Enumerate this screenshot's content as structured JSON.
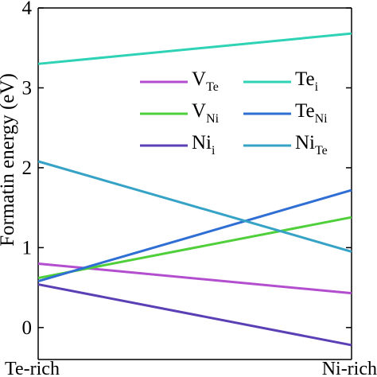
{
  "chart_data": {
    "type": "line",
    "categories": [
      "Te-rich",
      "Ni-rich"
    ],
    "ylabel": "Formatin energy (eV)",
    "ylim": [
      -0.4,
      4
    ],
    "yticks": [
      "0",
      "1",
      "2",
      "3",
      "4"
    ],
    "ytick_values": [
      0,
      1,
      2,
      3,
      4
    ],
    "legend_position": "upper-right",
    "series": [
      {
        "key": "v_te",
        "name_main": "V",
        "name_sub": "Te",
        "values": [
          0.8,
          0.43
        ],
        "color": "#b34fcf"
      },
      {
        "key": "te_i",
        "name_main": "Te",
        "name_sub": "i",
        "values": [
          3.3,
          3.68
        ],
        "color": "#2ed2b5"
      },
      {
        "key": "v_ni",
        "name_main": "V",
        "name_sub": "Ni",
        "values": [
          0.62,
          1.38
        ],
        "color": "#4fcf3a"
      },
      {
        "key": "te_ni",
        "name_main": "Te",
        "name_sub": "Ni",
        "values": [
          0.58,
          1.72
        ],
        "color": "#2f6ed2"
      },
      {
        "key": "ni_i",
        "name_main": "Ni",
        "name_sub": "i",
        "values": [
          0.54,
          -0.22
        ],
        "color": "#5b3fb5"
      },
      {
        "key": "ni_te",
        "name_main": "Ni",
        "name_sub": "Te",
        "values": [
          2.08,
          0.95
        ],
        "color": "#36a3c6"
      }
    ]
  }
}
